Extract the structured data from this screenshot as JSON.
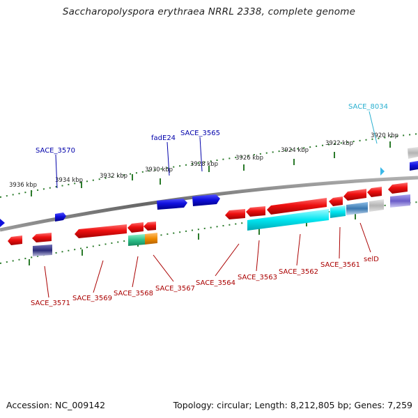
{
  "title": "Saccharopolyspora erythraea NRRL 2338, complete genome",
  "footer": {
    "accession": "Accession: NC_009142",
    "summary": "Topology: circular; Length: 8,212,805 bp; Genes: 7,259"
  },
  "ruler_ticks": [
    "3936 kbp",
    "3934 kbp",
    "3932 kbp",
    "3930 kbp",
    "3928 kbp",
    "3926 kbp",
    "3924 kbp",
    "3922 kbp",
    "3920 kbp"
  ],
  "gene_labels_top": [
    "SACE_3570",
    "fadE24",
    "SACE_3565",
    "SACE_8034"
  ],
  "gene_labels_bottom": [
    "SACE_3571",
    "SACE_3569",
    "SACE_3568",
    "SACE_3567",
    "SACE_3564",
    "SACE_3563",
    "SACE_3562",
    "SACE_3561",
    "selD"
  ],
  "colors": {
    "forward_gene": "#1010dd",
    "reverse_gene": "#ee1010",
    "rna_cyan": "#00e5f0",
    "teal": "#2ec08a",
    "orange": "#f08a00",
    "navy": "#2a2a78",
    "steel_blue": "#3a78b0",
    "gray_gene": "#b4b4b4",
    "violet": "#6a5cc8",
    "backbone": "#777777",
    "tick_green": "#2a7a2a",
    "label_blue": "#0000aa",
    "label_red": "#aa0000",
    "label_cyan": "#2ab0d0"
  }
}
